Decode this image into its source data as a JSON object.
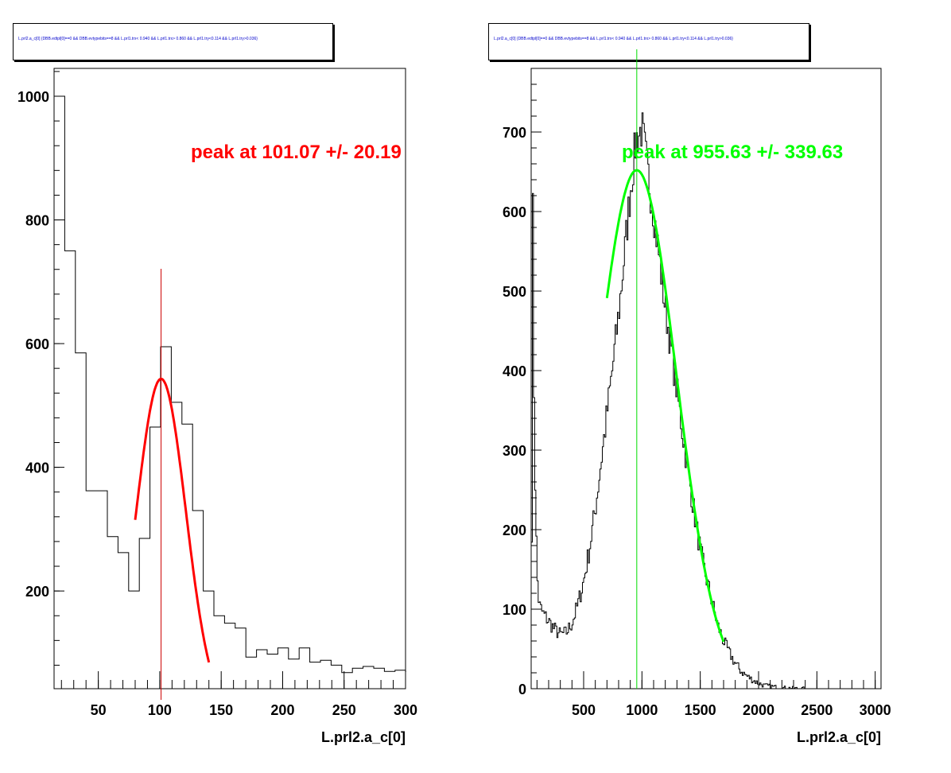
{
  "chart_data": [
    {
      "type": "bar",
      "title": "L.prl2.a_c[0] {DBB.edtpl[0]==0 && DBB.evtypebits==8 &&  L.prl1.trx< 0.940 && L.prl1.trx> 0.860 && L.prl1.try<0.114 && L.prl1.try>0.036}",
      "xlabel": "L.prl2.a_c[0]",
      "ylabel": "",
      "xlim": [
        14,
        300
      ],
      "ylim": [
        42,
        1045
      ],
      "xticks": [
        50,
        100,
        150,
        200,
        250,
        300
      ],
      "yticks": [
        200,
        400,
        600,
        800,
        1000
      ],
      "bin_width": 8.67,
      "bin_start": 14,
      "values": [
        1000,
        750,
        585,
        362,
        362,
        288,
        262,
        200,
        285,
        465,
        595,
        505,
        470,
        330,
        200,
        160,
        148,
        140,
        93,
        105,
        98,
        108,
        90,
        108,
        85,
        88,
        80,
        68,
        75,
        78,
        75,
        70,
        72,
        70
      ],
      "fit": {
        "color": "#ff0000",
        "peak": 101.07,
        "sigma": 20.19,
        "amplitude": 543,
        "range": [
          80,
          140
        ],
        "annotation": "peak at 101.07 +/- 20.19"
      },
      "marker_x": 101.07
    },
    {
      "type": "bar",
      "title": "L.prl2.a_c[0] {DBB.edtpl[0]==0 && DBB.evtypebits==8 &&  L.prl1.trx< 0.940 && L.prl1.trx> 0.860 && L.prl1.try<0.114 && L.prl1.try>0.036}",
      "xlabel": "L.prl2.a_c[0]",
      "ylabel": "",
      "xlim": [
        50,
        3050
      ],
      "ylim": [
        0,
        780
      ],
      "xticks": [
        500,
        1000,
        1500,
        2000,
        2500,
        3000
      ],
      "yticks": [
        0,
        100,
        200,
        300,
        400,
        500,
        600,
        700
      ],
      "bin_width": 10,
      "shape_points": [
        [
          50,
          0
        ],
        [
          55,
          200
        ],
        [
          60,
          420
        ],
        [
          65,
          600
        ],
        [
          70,
          450
        ],
        [
          80,
          300
        ],
        [
          90,
          220
        ],
        [
          100,
          150
        ],
        [
          110,
          120
        ],
        [
          120,
          105
        ],
        [
          150,
          95
        ],
        [
          200,
          85
        ],
        [
          250,
          75
        ],
        [
          300,
          68
        ],
        [
          350,
          70
        ],
        [
          400,
          82
        ],
        [
          450,
          105
        ],
        [
          500,
          135
        ],
        [
          550,
          175
        ],
        [
          600,
          225
        ],
        [
          650,
          285
        ],
        [
          700,
          345
        ],
        [
          750,
          405
        ],
        [
          800,
          470
        ],
        [
          850,
          545
        ],
        [
          900,
          625
        ],
        [
          950,
          690
        ],
        [
          1000,
          705
        ],
        [
          1050,
          650
        ],
        [
          1100,
          600
        ],
        [
          1150,
          540
        ],
        [
          1200,
          480
        ],
        [
          1250,
          430
        ],
        [
          1300,
          375
        ],
        [
          1350,
          320
        ],
        [
          1400,
          270
        ],
        [
          1450,
          220
        ],
        [
          1500,
          175
        ],
        [
          1550,
          140
        ],
        [
          1600,
          110
        ],
        [
          1650,
          80
        ],
        [
          1700,
          60
        ],
        [
          1750,
          45
        ],
        [
          1800,
          32
        ],
        [
          1850,
          22
        ],
        [
          1900,
          16
        ],
        [
          1950,
          11
        ],
        [
          2000,
          7
        ],
        [
          2050,
          4
        ],
        [
          2100,
          3
        ],
        [
          2150,
          2
        ],
        [
          2200,
          1
        ],
        [
          2250,
          1
        ],
        [
          2300,
          0.5
        ],
        [
          2400,
          0
        ],
        [
          3050,
          0
        ]
      ],
      "fit": {
        "color": "#00ff00",
        "peak": 955.63,
        "sigma": 339.63,
        "amplitude": 652,
        "range": [
          700,
          1700
        ],
        "annotation": "peak at 955.63 +/- 339.63"
      },
      "marker_x": 955.63
    }
  ]
}
